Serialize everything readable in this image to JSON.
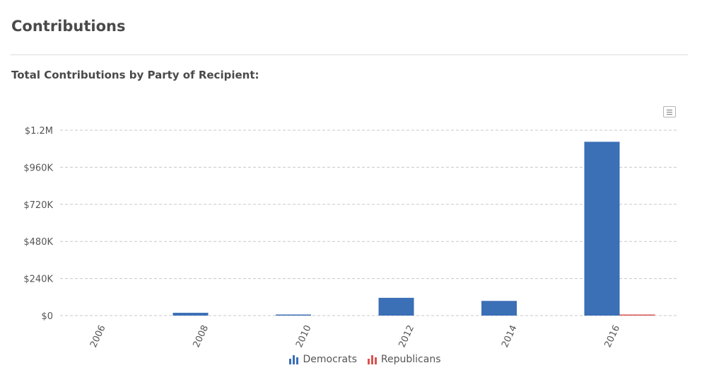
{
  "header": {
    "title": "Contributions"
  },
  "chart_data": {
    "type": "bar",
    "title": "Total Contributions by Party of Recipient:",
    "categories": [
      "2006",
      "2008",
      "2010",
      "2012",
      "2014",
      "2016"
    ],
    "series": [
      {
        "name": "Democrats",
        "color": "#3b6fb6",
        "values": [
          0,
          18000,
          4000,
          115000,
          95000,
          1125000
        ]
      },
      {
        "name": "Republicans",
        "color": "#d9534f",
        "values": [
          0,
          0,
          0,
          0,
          0,
          5000
        ]
      }
    ],
    "y_ticks": [
      0,
      240000,
      480000,
      720000,
      960000,
      1200000
    ],
    "y_tick_labels": [
      "$0",
      "$240K",
      "$480K",
      "$720K",
      "$960K",
      "$1.2M"
    ],
    "ylim": [
      0,
      1200000
    ],
    "grid": true,
    "legend_position": "bottom-center",
    "menu_icon": "hamburger-menu-icon"
  }
}
